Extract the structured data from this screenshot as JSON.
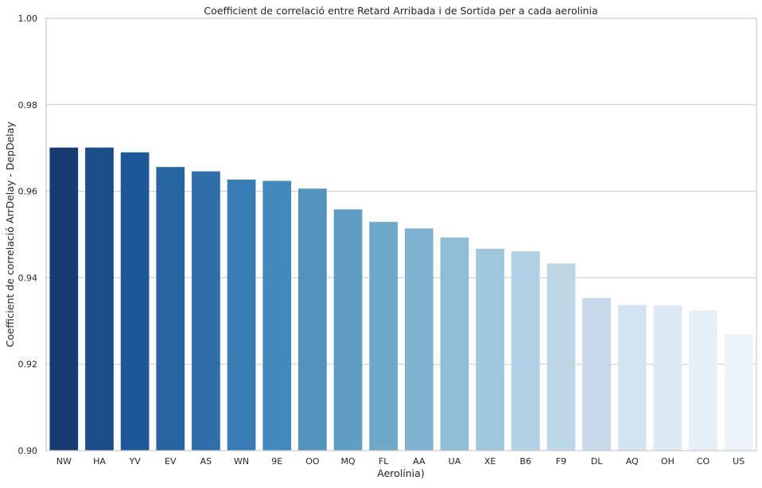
{
  "chart_data": {
    "type": "bar",
    "title": "Coefficient de correlació entre Retard Arribada i de Sortida per a cada aerolinia",
    "xlabel": "Aerolínia)",
    "ylabel": "Coefficient de correlació ArrDelay - DepDelay",
    "ylim": [
      0.9,
      1.0
    ],
    "yticks": [
      0.9,
      0.92,
      0.94,
      0.96,
      0.98,
      1.0
    ],
    "ytick_labels": [
      "0.90",
      "0.92",
      "0.94",
      "0.96",
      "0.98",
      "1.00"
    ],
    "grid": "horizontal",
    "categories": [
      "NW",
      "HA",
      "YV",
      "EV",
      "AS",
      "WN",
      "9E",
      "OO",
      "MQ",
      "FL",
      "AA",
      "UA",
      "XE",
      "B6",
      "F9",
      "DL",
      "AQ",
      "OH",
      "CO",
      "US"
    ],
    "values": [
      0.9701,
      0.9701,
      0.969,
      0.9656,
      0.9646,
      0.9627,
      0.9624,
      0.9606,
      0.9558,
      0.9529,
      0.9514,
      0.9493,
      0.9467,
      0.9461,
      0.9433,
      0.9353,
      0.9337,
      0.9336,
      0.9324,
      0.927
    ],
    "colors": [
      "#1a3a72",
      "#1b4d86",
      "#1f5898",
      "#28649f",
      "#316ea7",
      "#3a7db4",
      "#4489bc",
      "#5193bb",
      "#5f9ec2",
      "#6ea7c8",
      "#7eb2d0",
      "#8fbdd6",
      "#a0c7dd",
      "#b0d0e4",
      "#bdd6e6",
      "#cad9e9",
      "#d4e3f1",
      "#dde9f4",
      "#e6eef7",
      "#eff4fb"
    ]
  }
}
